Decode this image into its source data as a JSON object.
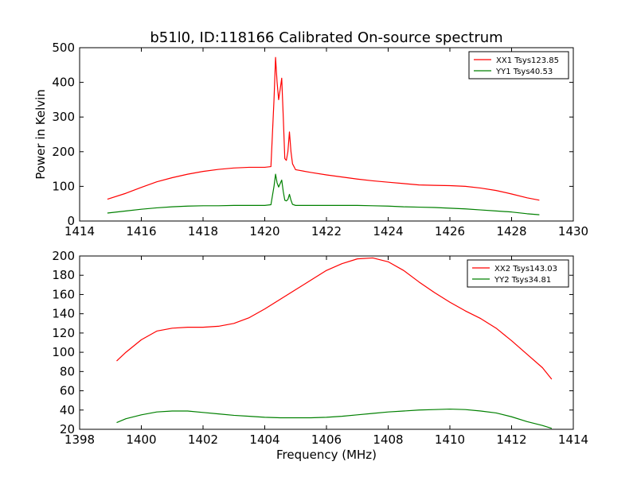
{
  "title": "b51l0, ID:118166 Calibrated On-source spectrum",
  "colors": {
    "red": "#ff0000",
    "green": "#008000"
  },
  "chart_data": [
    {
      "type": "line",
      "ylabel": "Power in Kelvin",
      "xlabel": "",
      "xlim": [
        1414,
        1430
      ],
      "ylim": [
        0,
        500
      ],
      "xticks": [
        1414,
        1416,
        1418,
        1420,
        1422,
        1424,
        1426,
        1428,
        1430
      ],
      "yticks": [
        0,
        100,
        200,
        300,
        400,
        500
      ],
      "legend_position": "top-right",
      "series": [
        {
          "name": "XX1 Tsys123.85",
          "color": "#ff0000",
          "x": [
            1414.9,
            1415.5,
            1416,
            1416.5,
            1417,
            1417.5,
            1418,
            1418.5,
            1419,
            1419.5,
            1420,
            1420.2,
            1420.3,
            1420.35,
            1420.4,
            1420.45,
            1420.5,
            1420.55,
            1420.6,
            1420.65,
            1420.7,
            1420.75,
            1420.8,
            1420.85,
            1420.9,
            1421,
            1421.5,
            1422,
            1422.5,
            1423,
            1423.5,
            1424,
            1424.5,
            1425,
            1425.5,
            1426,
            1426.5,
            1427,
            1427.5,
            1428,
            1428.5,
            1428.9
          ],
          "y": [
            63,
            80,
            97,
            113,
            125,
            135,
            143,
            149,
            153,
            155,
            155,
            157,
            350,
            472,
            400,
            350,
            380,
            412,
            300,
            180,
            175,
            200,
            257,
            200,
            165,
            148,
            140,
            133,
            127,
            121,
            116,
            112,
            108,
            104,
            103,
            102,
            100,
            95,
            88,
            78,
            67,
            60
          ]
        },
        {
          "name": "YY1 Tsys40.53",
          "color": "#008000",
          "x": [
            1414.9,
            1415.5,
            1416,
            1416.5,
            1417,
            1417.5,
            1418,
            1418.5,
            1419,
            1419.5,
            1420,
            1420.2,
            1420.3,
            1420.35,
            1420.4,
            1420.45,
            1420.5,
            1420.55,
            1420.6,
            1420.65,
            1420.7,
            1420.75,
            1420.8,
            1420.85,
            1420.9,
            1421,
            1421.5,
            1422,
            1422.5,
            1423,
            1423.5,
            1424,
            1424.5,
            1425,
            1425.5,
            1426,
            1426.5,
            1427,
            1427.5,
            1428,
            1428.5,
            1428.9
          ],
          "y": [
            23,
            29,
            34,
            38,
            41,
            43,
            44,
            44,
            45,
            45,
            45,
            47,
            100,
            135,
            110,
            98,
            108,
            118,
            85,
            60,
            58,
            62,
            77,
            60,
            48,
            45,
            45,
            45,
            45,
            45,
            44,
            43,
            41,
            40,
            39,
            37,
            35,
            32,
            29,
            26,
            21,
            18
          ]
        }
      ]
    },
    {
      "type": "line",
      "ylabel": "",
      "xlabel": "Frequency (MHz)",
      "xlim": [
        1398,
        1414
      ],
      "ylim": [
        20,
        200
      ],
      "xticks": [
        1398,
        1400,
        1402,
        1404,
        1406,
        1408,
        1410,
        1412,
        1414
      ],
      "yticks": [
        20,
        40,
        60,
        80,
        100,
        120,
        140,
        160,
        180,
        200
      ],
      "legend_position": "top-right",
      "series": [
        {
          "name": "XX2 Tsys143.03",
          "color": "#ff0000",
          "x": [
            1399.2,
            1399.5,
            1400,
            1400.5,
            1401,
            1401.5,
            1402,
            1402.5,
            1403,
            1403.5,
            1404,
            1404.5,
            1405,
            1405.5,
            1406,
            1406.5,
            1407,
            1407.5,
            1408,
            1408.5,
            1409,
            1409.5,
            1410,
            1410.5,
            1411,
            1411.5,
            1412,
            1412.5,
            1413,
            1413.3
          ],
          "y": [
            91,
            100,
            113,
            122,
            125,
            126,
            126,
            127,
            130,
            136,
            145,
            155,
            165,
            175,
            185,
            192,
            197,
            198,
            194,
            185,
            173,
            162,
            152,
            143,
            135,
            125,
            112,
            98,
            84,
            72
          ]
        },
        {
          "name": "YY2 Tsys34.81",
          "color": "#008000",
          "x": [
            1399.2,
            1399.5,
            1400,
            1400.5,
            1401,
            1401.5,
            1402,
            1402.5,
            1403,
            1403.5,
            1404,
            1404.5,
            1405,
            1405.5,
            1406,
            1406.5,
            1407,
            1407.5,
            1408,
            1408.5,
            1409,
            1409.5,
            1410,
            1410.5,
            1411,
            1411.5,
            1412,
            1412.5,
            1413,
            1413.3
          ],
          "y": [
            27,
            31,
            35,
            38,
            39,
            39,
            37.5,
            36,
            34.5,
            33.5,
            32.5,
            32,
            32,
            32,
            32.5,
            33.5,
            35,
            36.5,
            38,
            39,
            40,
            40.5,
            41,
            40.5,
            39,
            37,
            33,
            28,
            24,
            21
          ]
        }
      ]
    }
  ]
}
